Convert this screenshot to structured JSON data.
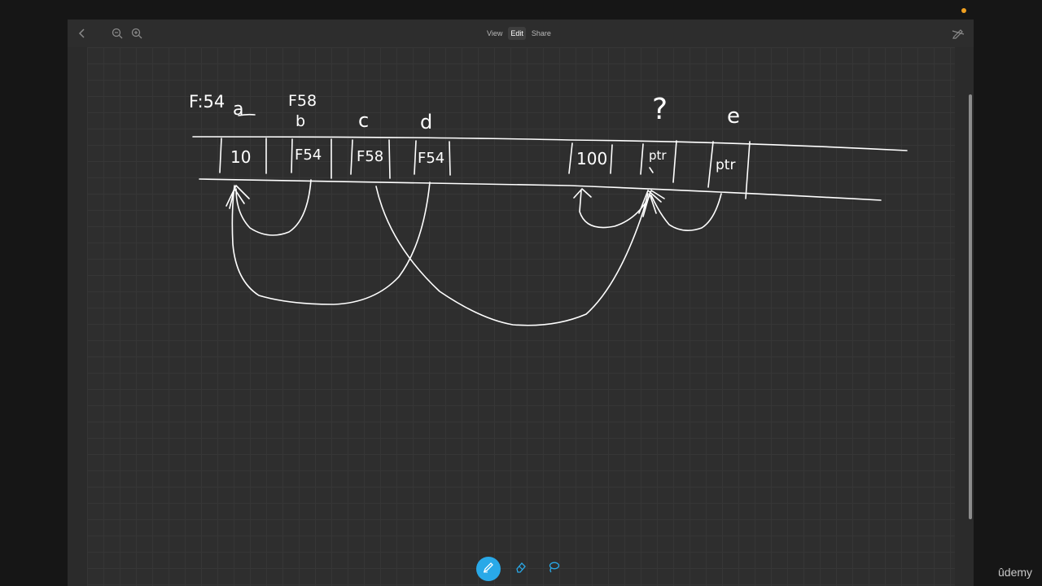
{
  "toolbar": {
    "back_icon": "chevron-left-icon",
    "zoom_out_icon": "zoom-out-icon",
    "zoom_in_icon": "zoom-in-icon",
    "tabs": [
      {
        "label": "View",
        "active": false
      },
      {
        "label": "Edit",
        "active": true
      },
      {
        "label": "Share",
        "active": false
      }
    ],
    "hide_toolbar_icon": "pencil-slash-icon"
  },
  "drawing": {
    "address_labels": [
      "F:54",
      "F58"
    ],
    "variable_labels": [
      "a",
      "b",
      "c",
      "d",
      "?",
      "e"
    ],
    "cell_values": [
      "10",
      "F54",
      "F58",
      "F54",
      "100",
      "ptr",
      "ptr"
    ]
  },
  "tools": [
    {
      "name": "pen",
      "icon": "pen-icon",
      "active": true
    },
    {
      "name": "eraser",
      "icon": "eraser-icon",
      "active": false
    },
    {
      "name": "lasso",
      "icon": "lasso-icon",
      "active": false
    }
  ],
  "watermark": "ûdemy",
  "colors": {
    "accent": "#29a9e8",
    "status_dot": "#f0a020",
    "ink": "#ffffff"
  }
}
